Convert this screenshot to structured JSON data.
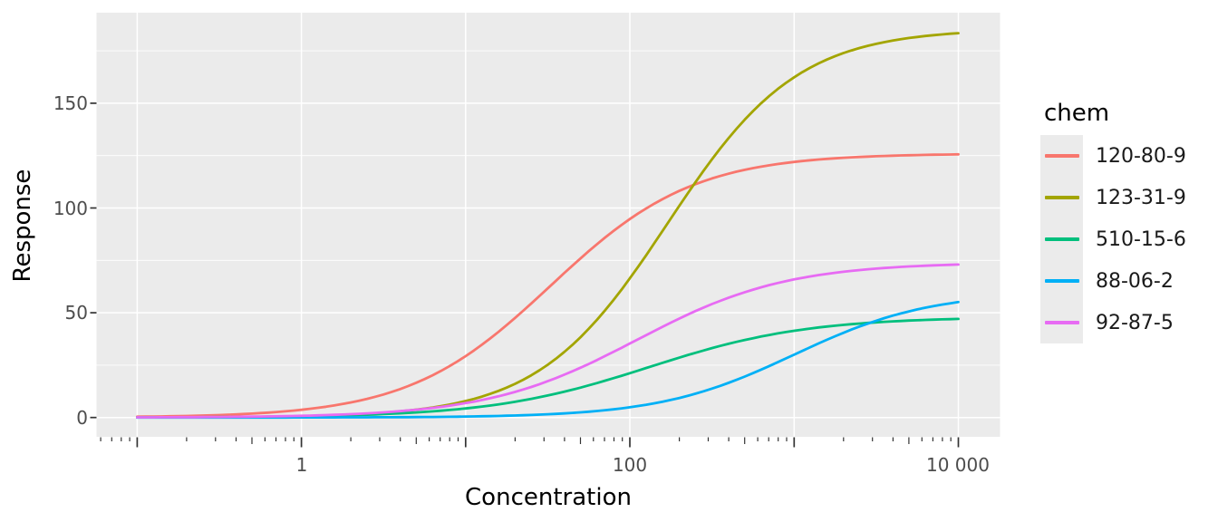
{
  "chart_data": {
    "type": "line",
    "title": "",
    "xlabel": "Concentration",
    "ylabel": "Response",
    "legend_title": "chem",
    "legend_position": "right",
    "x_scale": "log10",
    "x_tick_labels": [
      "1",
      "100",
      "10 000"
    ],
    "x_tick_values": [
      1,
      100,
      10000
    ],
    "x_unlabeled_major_ticks": [
      0.1,
      10,
      1000
    ],
    "y_tick_labels": [
      "0",
      "50",
      "100",
      "150"
    ],
    "y_tick_values": [
      0,
      50,
      100,
      150
    ],
    "y_minor_gridlines": [
      25,
      75,
      125,
      175
    ],
    "xlim_log10": [
      -1.2475,
      4.2539
    ],
    "ylim": [
      -9.2,
      193.2
    ],
    "x_data_range": [
      0.1,
      10000
    ],
    "grid": "white major gridlines on gray panel; horizontal minor gridlines only; graduated log tick marks outside bottom axis",
    "sample_x": [
      0.1,
      1,
      3,
      10,
      30,
      100,
      300,
      1000,
      3000,
      10000
    ],
    "series": [
      {
        "name": "120-80-9",
        "color": "#F8766D",
        "hill": {
          "top": 126,
          "ec50": 33,
          "slope": 1.0
        },
        "values": [
          0.4,
          3.7,
          10.5,
          29.3,
          60.0,
          94.7,
          113.5,
          122.0,
          124.6,
          125.6
        ]
      },
      {
        "name": "123-31-9",
        "color": "#A3A500",
        "hill": {
          "top": 185.5,
          "ec50": 170,
          "slope": 1.1
        },
        "values": [
          0.1,
          0.6,
          2.2,
          7.9,
          24.0,
          66.4,
          120.8,
          162.4,
          177.9,
          183.4
        ]
      },
      {
        "name": "510-15-6",
        "color": "#00BF7D",
        "hill": {
          "top": 48,
          "ec50": 130,
          "slope": 0.9
        },
        "values": [
          0.1,
          0.6,
          1.6,
          4.3,
          10.1,
          21.2,
          32.6,
          41.4,
          45.3,
          47.1
        ]
      },
      {
        "name": "88-06-2",
        "color": "#00B0F6",
        "hill": {
          "top": 60,
          "ec50": 1000,
          "slope": 1.05
        },
        "values": [
          0.0,
          0.0,
          0.1,
          0.5,
          1.5,
          4.9,
          13.2,
          30.0,
          45.6,
          55.1
        ]
      },
      {
        "name": "92-87-5",
        "color": "#E76BF3",
        "hill": {
          "top": 74,
          "ec50": 110,
          "slope": 0.95
        },
        "values": [
          0.1,
          0.8,
          2.3,
          6.9,
          16.7,
          35.3,
          53.4,
          65.9,
          70.9,
          73.0
        ]
      }
    ]
  },
  "theme": {
    "background": "#FFFFFF",
    "panel_background": "#EBEBEB",
    "gridline_color": "#FFFFFF",
    "tick_label_color": "#4D4D4D",
    "axis_title_color": "#000000",
    "legend_text_color": "#1A1A1A",
    "tick_mark_color": "#333333"
  }
}
